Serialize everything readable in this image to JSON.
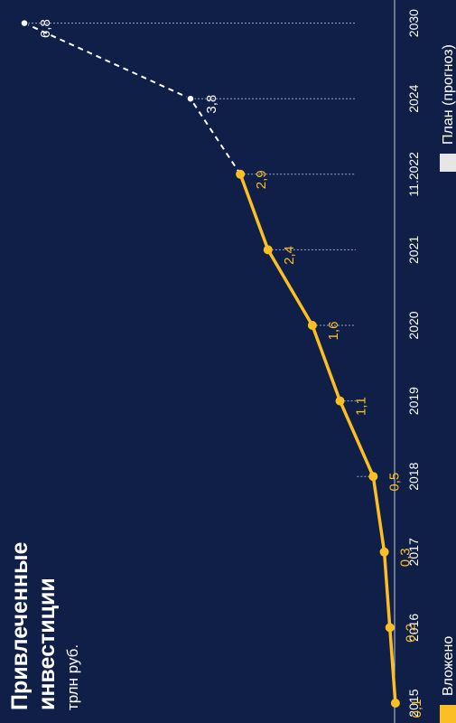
{
  "chart_data": {
    "type": "line",
    "title": "Привлеченные инвестиции",
    "subtitle": "трлн руб.",
    "categories": [
      "2015",
      "2016",
      "2017",
      "2018",
      "2019",
      "2020",
      "2021",
      "11.2022",
      "2024",
      "2030"
    ],
    "series": [
      {
        "name": "Вложено",
        "color": "#fbbf24",
        "style": "solid",
        "x": [
          "2015",
          "2016",
          "2017",
          "2018",
          "2019",
          "2020",
          "2021",
          "11.2022"
        ],
        "values": [
          0.1,
          0.2,
          0.3,
          0.5,
          1.1,
          1.6,
          2.4,
          2.9
        ],
        "labels": [
          "0,1",
          "0,2",
          "0,3",
          "0,5",
          "1,1",
          "1,6",
          "2,4",
          "2,9"
        ]
      },
      {
        "name": "План (прогноз)",
        "color": "#ffffff",
        "style": "dashed",
        "x": [
          "11.2022",
          "2024",
          "2030"
        ],
        "values": [
          2.9,
          3.8,
          6.8
        ],
        "labels": [
          "",
          "3,8",
          "6,8"
        ]
      }
    ],
    "ylim": [
      0,
      6.8
    ],
    "grid": "dotted guide lines from points to category axis",
    "legend": "bottom",
    "orientation": "rotated 90 degrees counter-clockwise",
    "colors": {
      "background": "#0f1f47",
      "invested": "#fbbf24",
      "plan": "#ffffff",
      "legend_plan": "#e6e6e6"
    }
  }
}
